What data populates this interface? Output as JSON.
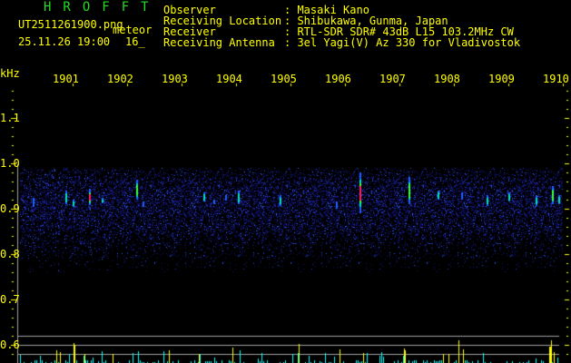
{
  "header": {
    "app_title": "HROFFT",
    "filename": "UT2511261900.png",
    "mode": "meteor",
    "datetime": "25.11.26 19:00",
    "count": "16_"
  },
  "info": [
    {
      "label": "Observer",
      "value": ": Masaki Kano"
    },
    {
      "label": "Receiving Location",
      "value": ": Shibukawa, Gunma, Japan"
    },
    {
      "label": "Receiver",
      "value": ": RTL-SDR SDR# 43dB L15 103.2MHz CW"
    },
    {
      "label": "Receiving Antenna",
      "value": ": 3el Yagi(V) Az 330 for Vladivostok"
    }
  ],
  "axis": {
    "y_unit": "kHz",
    "y_ticks": [
      "1.1",
      "1.0",
      "0.9",
      "0.8",
      "0.7",
      "0.6"
    ],
    "x_ticks": [
      "1901",
      "1902",
      "1903",
      "1904",
      "1905",
      "1906",
      "1907",
      "1908",
      "1909",
      "1910"
    ]
  },
  "colors": {
    "background": "#000000",
    "text": "#ffff00",
    "title": "#22dd22",
    "histogram": "#00ffff",
    "spike": "#ffff00",
    "grid": "#a0a0a0"
  }
}
